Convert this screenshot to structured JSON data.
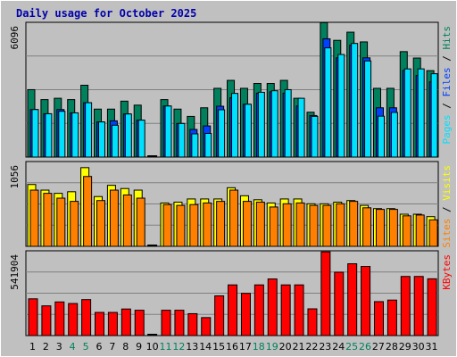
{
  "title": "Daily usage for October 2025",
  "colors": {
    "frame": "#c0c0c0",
    "plot_bg": "#c0c0c0",
    "title": "#0000aa",
    "hits": "#00805c",
    "files": "#0040ff",
    "pages": "#00e0ff",
    "visits": "#ffff00",
    "sites": "#ff8000",
    "kbytes": "#ff0000",
    "weekday_label": "#000000",
    "weekend_label": "#00805c"
  },
  "chart_data": [
    {
      "type": "bar",
      "max_label": "6096",
      "ylim": [
        0,
        6096
      ],
      "legend": [
        {
          "label": "Pages",
          "color_key": "pages"
        },
        {
          "label": "Files",
          "color_key": "files"
        },
        {
          "label": "Hits",
          "color_key": "hits"
        }
      ],
      "categories": [
        "1",
        "2",
        "3",
        "4",
        "5",
        "6",
        "7",
        "8",
        "9",
        "10",
        "11",
        "12",
        "13",
        "14",
        "15",
        "16",
        "17",
        "18",
        "19",
        "20",
        "21",
        "22",
        "23",
        "24",
        "25",
        "26",
        "27",
        "28",
        "29",
        "30",
        "31"
      ],
      "series": [
        {
          "name": "Hits",
          "color_key": "hits",
          "values": [
            3050,
            2600,
            2660,
            2600,
            3250,
            2170,
            2170,
            2530,
            2350,
            0,
            2600,
            2170,
            1840,
            2230,
            3110,
            3470,
            3110,
            3330,
            3330,
            3470,
            2660,
            2030,
            6080,
            5280,
            5650,
            5210,
            3110,
            3110,
            4770,
            4480,
            3910
          ]
        },
        {
          "name": "Files",
          "color_key": "files",
          "values": [
            2150,
            1960,
            2150,
            2000,
            2460,
            1590,
            1640,
            1950,
            1670,
            0,
            2310,
            1520,
            1250,
            1410,
            2300,
            2680,
            2390,
            2890,
            2950,
            2890,
            2310,
            1880,
            5350,
            4490,
            5060,
            4490,
            2230,
            2230,
            3920,
            3690,
            3400
          ]
        },
        {
          "name": "Pages",
          "color_key": "pages",
          "values": [
            2150,
            1960,
            2070,
            2000,
            2460,
            1590,
            1440,
            1950,
            1670,
            0,
            2310,
            1520,
            1050,
            1070,
            2140,
            2880,
            2390,
            2930,
            3000,
            3050,
            2660,
            1840,
            4940,
            4640,
            5140,
            4350,
            1850,
            2020,
            3990,
            3990,
            3770
          ]
        }
      ]
    },
    {
      "type": "bar",
      "max_label": "1056",
      "ylim": [
        0,
        1056
      ],
      "legend": [
        {
          "label": "Sites",
          "color_key": "sites"
        },
        {
          "label": "Visits",
          "color_key": "visits"
        }
      ],
      "categories": [
        "1",
        "2",
        "3",
        "4",
        "5",
        "6",
        "7",
        "8",
        "9",
        "10",
        "11",
        "12",
        "13",
        "14",
        "15",
        "16",
        "17",
        "18",
        "19",
        "20",
        "21",
        "22",
        "23",
        "24",
        "25",
        "26",
        "27",
        "28",
        "29",
        "30",
        "31"
      ],
      "series": [
        {
          "name": "Visits",
          "color_key": "visits",
          "values": [
            770,
            700,
            660,
            680,
            980,
            620,
            760,
            720,
            700,
            0,
            540,
            550,
            590,
            590,
            590,
            730,
            630,
            580,
            540,
            590,
            590,
            530,
            530,
            550,
            570,
            510,
            470,
            470,
            400,
            400,
            370
          ]
        },
        {
          "name": "Sites",
          "color_key": "sites",
          "values": [
            700,
            660,
            600,
            560,
            870,
            570,
            700,
            640,
            600,
            0,
            520,
            510,
            520,
            540,
            560,
            700,
            560,
            550,
            490,
            530,
            540,
            510,
            510,
            530,
            560,
            480,
            460,
            460,
            380,
            390,
            330
          ]
        }
      ]
    },
    {
      "type": "bar",
      "max_label": "541904",
      "ylim": [
        0,
        541904
      ],
      "legend": [
        {
          "label": "KBytes",
          "color_key": "kbytes"
        }
      ],
      "categories": [
        "1",
        "2",
        "3",
        "4",
        "5",
        "6",
        "7",
        "8",
        "9",
        "10",
        "11",
        "12",
        "13",
        "14",
        "15",
        "16",
        "17",
        "18",
        "19",
        "20",
        "21",
        "22",
        "23",
        "24",
        "25",
        "26",
        "27",
        "28",
        "29",
        "30",
        "31"
      ],
      "series": [
        {
          "name": "KBytes",
          "color_key": "kbytes",
          "values": [
            235000,
            190000,
            215000,
            205000,
            230000,
            148000,
            148000,
            170000,
            162000,
            0,
            162000,
            162000,
            140000,
            115000,
            254000,
            324000,
            270000,
            324000,
            362000,
            324000,
            324000,
            171000,
            535000,
            405000,
            459000,
            442000,
            217000,
            227000,
            378000,
            378000,
            363000
          ]
        }
      ]
    }
  ]
}
